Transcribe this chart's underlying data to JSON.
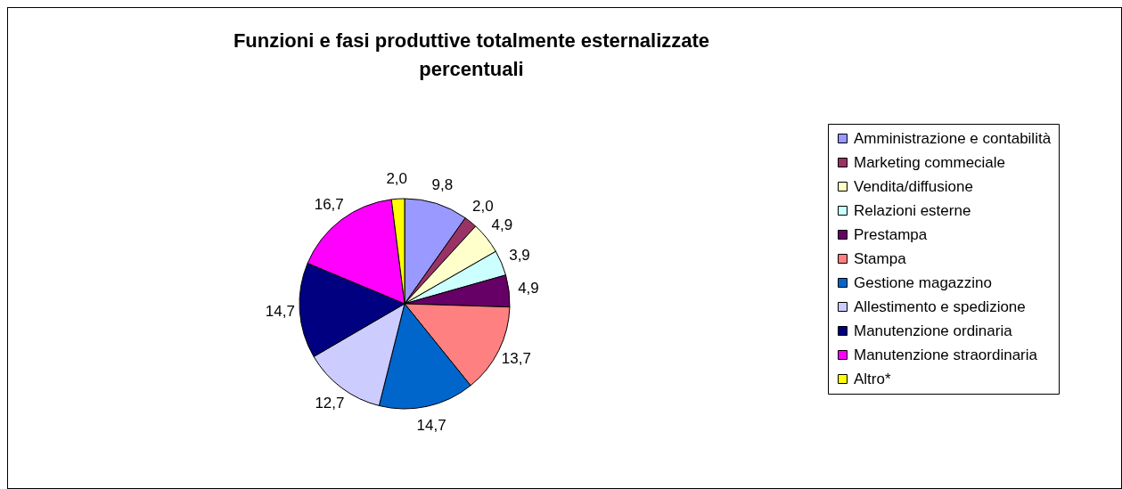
{
  "chart_data": {
    "type": "pie",
    "title": "Funzioni e fasi produttive totalmente esternalizzate percentuali",
    "categories": [
      "Amministrazione e contabilità",
      "Marketing commeciale",
      "Vendita/diffusione",
      "Relazioni esterne",
      "Prestampa",
      "Stampa",
      "Gestione magazzino",
      "Allestimento e spedizione",
      "Manutenzione ordinaria",
      "Manutenzione straordinaria",
      "Altro*"
    ],
    "values": [
      9.8,
      2.0,
      4.9,
      3.9,
      4.9,
      13.7,
      14.7,
      12.7,
      14.7,
      16.7,
      2.0
    ],
    "value_labels": [
      "9,8",
      "2,0",
      "4,9",
      "3,9",
      "4,9",
      "13,7",
      "14,7",
      "12,7",
      "14,7",
      "16,7",
      "2,0"
    ],
    "colors": [
      "#9999ff",
      "#993366",
      "#ffffcc",
      "#ccffff",
      "#660066",
      "#ff8080",
      "#0066cc",
      "#ccccff",
      "#000080",
      "#ff00ff",
      "#ffff00"
    ],
    "legend": "right"
  }
}
